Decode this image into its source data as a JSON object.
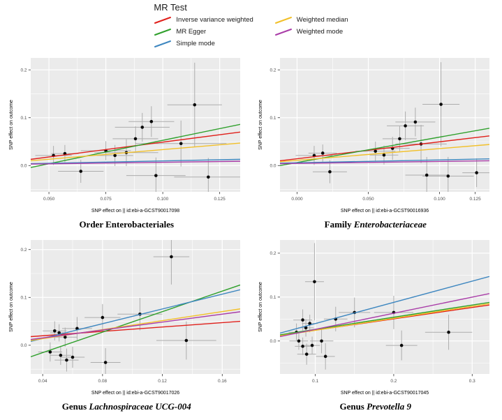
{
  "legend": {
    "title": "MR Test",
    "items": [
      {
        "label": "Inverse variance weighted",
        "color": "#E0201B"
      },
      {
        "label": "MR Egger",
        "color": "#2FA02C"
      },
      {
        "label": "Simple mode",
        "color": "#3E87C0"
      },
      {
        "label": "Weighted median",
        "color": "#F2C029"
      },
      {
        "label": "Weighted mode",
        "color": "#A93DA8"
      }
    ]
  },
  "style": {
    "panel_bg": "#EBEBEB",
    "grid_color": "#FFFFFF",
    "errorbar_color": "#ADADAD",
    "point_color": "#0A0A0A",
    "tick_label_color": "#4D4D4D",
    "axis_title_color": "#000000"
  },
  "chart_data": [
    {
      "type": "scatter",
      "title_prefix": "Order Enterobacteriales",
      "title_italic": "",
      "xlabel": "SNP effect on  || id:ebi-a-GCST90017098",
      "ylabel": "SNP effect on outcome",
      "xlim": [
        0.042,
        0.134
      ],
      "ylim": [
        -0.055,
        0.225
      ],
      "x_ticks": [
        {
          "v": 0.05,
          "label": "0.050"
        },
        {
          "v": 0.075,
          "label": "0.075"
        },
        {
          "v": 0.1,
          "label": "0.100"
        },
        {
          "v": 0.125,
          "label": "0.125"
        }
      ],
      "y_ticks": [
        {
          "v": 0.0,
          "label": "0.0"
        },
        {
          "v": 0.1,
          "label": "0.1"
        },
        {
          "v": 0.2,
          "label": "0.2"
        }
      ],
      "points": [
        {
          "x": 0.052,
          "y": 0.021,
          "ex": 0.008,
          "ey": 0.02
        },
        {
          "x": 0.057,
          "y": 0.025,
          "ex": 0.006,
          "ey": 0.018
        },
        {
          "x": 0.064,
          "y": -0.012,
          "ex": 0.01,
          "ey": 0.024
        },
        {
          "x": 0.075,
          "y": 0.031,
          "ex": 0.011,
          "ey": 0.02
        },
        {
          "x": 0.079,
          "y": 0.021,
          "ex": 0.008,
          "ey": 0.022
        },
        {
          "x": 0.084,
          "y": 0.027,
          "ex": 0.014,
          "ey": 0.028
        },
        {
          "x": 0.088,
          "y": 0.056,
          "ex": 0.01,
          "ey": 0.026
        },
        {
          "x": 0.091,
          "y": 0.08,
          "ex": 0.012,
          "ey": 0.03
        },
        {
          "x": 0.095,
          "y": 0.092,
          "ex": 0.01,
          "ey": 0.032
        },
        {
          "x": 0.097,
          "y": -0.021,
          "ex": 0.013,
          "ey": 0.038
        },
        {
          "x": 0.108,
          "y": 0.046,
          "ex": 0.02,
          "ey": 0.048
        },
        {
          "x": 0.114,
          "y": 0.127,
          "ex": 0.012,
          "ey": 0.088
        },
        {
          "x": 0.12,
          "y": -0.024,
          "ex": 0.015,
          "ey": 0.04
        }
      ],
      "lines": [
        {
          "series": "Inverse variance weighted",
          "color_index": 0,
          "y1": 0.013,
          "y2": 0.07
        },
        {
          "series": "MR Egger",
          "color_index": 1,
          "y1": -0.004,
          "y2": 0.086
        },
        {
          "series": "Simple mode",
          "color_index": 2,
          "y1": 0.004,
          "y2": 0.013
        },
        {
          "series": "Weighted median",
          "color_index": 3,
          "y1": 0.01,
          "y2": 0.047
        },
        {
          "series": "Weighted mode",
          "color_index": 4,
          "y1": 0.003,
          "y2": 0.009
        }
      ]
    },
    {
      "type": "scatter",
      "title_prefix": "Family ",
      "title_italic": "Enterobacteriaceae",
      "xlabel": "SNP effect on  || id:ebi-a-GCST90016936",
      "ylabel": "SNP effect on outcome",
      "xlim": [
        -0.012,
        0.135
      ],
      "ylim": [
        -0.055,
        0.225
      ],
      "x_ticks": [
        {
          "v": 0.0,
          "label": "0.000"
        },
        {
          "v": 0.05,
          "label": "0.050"
        },
        {
          "v": 0.1,
          "label": "0.100"
        },
        {
          "v": 0.125,
          "label": "0.125"
        }
      ],
      "y_ticks": [
        {
          "v": 0.0,
          "label": "0.0"
        },
        {
          "v": 0.1,
          "label": "0.1"
        },
        {
          "v": 0.2,
          "label": "0.2"
        }
      ],
      "points": [
        {
          "x": 0.012,
          "y": 0.021,
          "ex": 0.013,
          "ey": 0.02
        },
        {
          "x": 0.018,
          "y": 0.026,
          "ex": 0.01,
          "ey": 0.018
        },
        {
          "x": 0.023,
          "y": -0.013,
          "ex": 0.012,
          "ey": 0.024
        },
        {
          "x": 0.055,
          "y": 0.03,
          "ex": 0.014,
          "ey": 0.02
        },
        {
          "x": 0.061,
          "y": 0.022,
          "ex": 0.01,
          "ey": 0.02
        },
        {
          "x": 0.067,
          "y": 0.036,
          "ex": 0.012,
          "ey": 0.024
        },
        {
          "x": 0.072,
          "y": 0.056,
          "ex": 0.012,
          "ey": 0.026
        },
        {
          "x": 0.076,
          "y": 0.083,
          "ex": 0.013,
          "ey": 0.03
        },
        {
          "x": 0.083,
          "y": 0.091,
          "ex": 0.014,
          "ey": 0.03
        },
        {
          "x": 0.087,
          "y": 0.045,
          "ex": 0.018,
          "ey": 0.04
        },
        {
          "x": 0.091,
          "y": -0.02,
          "ex": 0.015,
          "ey": 0.038
        },
        {
          "x": 0.101,
          "y": 0.128,
          "ex": 0.013,
          "ey": 0.088
        },
        {
          "x": 0.106,
          "y": -0.022,
          "ex": 0.018,
          "ey": 0.04
        },
        {
          "x": 0.126,
          "y": -0.015,
          "ex": 0.01,
          "ey": 0.03
        }
      ],
      "lines": [
        {
          "series": "Inverse variance weighted",
          "color_index": 0,
          "y1": 0.01,
          "y2": 0.062
        },
        {
          "series": "MR Egger",
          "color_index": 1,
          "y1": 0.0,
          "y2": 0.078
        },
        {
          "series": "Simple mode",
          "color_index": 2,
          "y1": 0.005,
          "y2": 0.014
        },
        {
          "series": "Weighted median",
          "color_index": 3,
          "y1": 0.008,
          "y2": 0.044
        },
        {
          "series": "Weighted mode",
          "color_index": 4,
          "y1": 0.004,
          "y2": 0.01
        }
      ]
    },
    {
      "type": "scatter",
      "title_prefix": "Genus ",
      "title_italic": "Lachnospiraceae UCG-004",
      "xlabel": "SNP effect on  || id:ebi-a-GCST90017026",
      "ylabel": "SNP effect on outcome",
      "xlim": [
        0.032,
        0.172
      ],
      "ylim": [
        -0.06,
        0.22
      ],
      "x_ticks": [
        {
          "v": 0.04,
          "label": "0.04"
        },
        {
          "v": 0.08,
          "label": "0.08"
        },
        {
          "v": 0.12,
          "label": "0.12"
        },
        {
          "v": 0.16,
          "label": "0.16"
        }
      ],
      "y_ticks": [
        {
          "v": 0.0,
          "label": "0.0"
        },
        {
          "v": 0.1,
          "label": "0.1"
        },
        {
          "v": 0.2,
          "label": "0.2"
        }
      ],
      "points": [
        {
          "x": 0.045,
          "y": -0.014,
          "ex": 0.008,
          "ey": 0.02
        },
        {
          "x": 0.048,
          "y": 0.03,
          "ex": 0.008,
          "ey": 0.02
        },
        {
          "x": 0.051,
          "y": 0.026,
          "ex": 0.006,
          "ey": 0.018
        },
        {
          "x": 0.052,
          "y": -0.021,
          "ex": 0.007,
          "ey": 0.02
        },
        {
          "x": 0.055,
          "y": 0.017,
          "ex": 0.008,
          "ey": 0.02
        },
        {
          "x": 0.056,
          "y": -0.031,
          "ex": 0.008,
          "ey": 0.024
        },
        {
          "x": 0.06,
          "y": -0.025,
          "ex": 0.008,
          "ey": 0.022
        },
        {
          "x": 0.063,
          "y": 0.035,
          "ex": 0.01,
          "ey": 0.024
        },
        {
          "x": 0.08,
          "y": 0.058,
          "ex": 0.012,
          "ey": 0.028
        },
        {
          "x": 0.082,
          "y": -0.036,
          "ex": 0.01,
          "ey": 0.03
        },
        {
          "x": 0.105,
          "y": 0.065,
          "ex": 0.015,
          "ey": 0.034
        },
        {
          "x": 0.126,
          "y": 0.185,
          "ex": 0.012,
          "ey": 0.058
        },
        {
          "x": 0.136,
          "y": 0.01,
          "ex": 0.02,
          "ey": 0.04
        }
      ],
      "lines": [
        {
          "series": "Inverse variance weighted",
          "color_index": 0,
          "y1": 0.018,
          "y2": 0.05
        },
        {
          "series": "MR Egger",
          "color_index": 1,
          "y1": -0.024,
          "y2": 0.126
        },
        {
          "series": "Simple mode",
          "color_index": 2,
          "y1": 0.008,
          "y2": 0.116
        },
        {
          "series": "Weighted median",
          "color_index": 3,
          "y1": 0.01,
          "y2": 0.076
        },
        {
          "series": "Weighted mode",
          "color_index": 4,
          "y1": 0.012,
          "y2": 0.07
        }
      ]
    },
    {
      "type": "scatter",
      "title_prefix": "Genus ",
      "title_italic": "Prevotella 9",
      "xlabel": "SNP effect on  || id:ebi-a-GCST90017045",
      "ylabel": "SNP effect on outcome",
      "xlim": [
        0.055,
        0.322
      ],
      "ylim": [
        -0.075,
        0.23
      ],
      "x_ticks": [
        {
          "v": 0.1,
          "label": "0.1"
        },
        {
          "v": 0.2,
          "label": "0.2"
        },
        {
          "v": 0.3,
          "label": "0.3"
        }
      ],
      "y_ticks": [
        {
          "v": 0.0,
          "label": "0.0"
        },
        {
          "v": 0.1,
          "label": "0.1"
        },
        {
          "v": 0.2,
          "label": "0.2"
        }
      ],
      "points": [
        {
          "x": 0.076,
          "y": 0.02,
          "ex": 0.01,
          "ey": 0.02
        },
        {
          "x": 0.084,
          "y": 0.048,
          "ex": 0.012,
          "ey": 0.024
        },
        {
          "x": 0.088,
          "y": 0.03,
          "ex": 0.01,
          "ey": 0.02
        },
        {
          "x": 0.093,
          "y": 0.04,
          "ex": 0.01,
          "ey": 0.02
        },
        {
          "x": 0.079,
          "y": 0.0,
          "ex": 0.012,
          "ey": 0.02
        },
        {
          "x": 0.084,
          "y": -0.012,
          "ex": 0.01,
          "ey": 0.02
        },
        {
          "x": 0.089,
          "y": -0.03,
          "ex": 0.012,
          "ey": 0.024
        },
        {
          "x": 0.096,
          "y": -0.01,
          "ex": 0.01,
          "ey": 0.02
        },
        {
          "x": 0.099,
          "y": 0.135,
          "ex": 0.012,
          "ey": 0.088
        },
        {
          "x": 0.108,
          "y": 0.0,
          "ex": 0.015,
          "ey": 0.028
        },
        {
          "x": 0.113,
          "y": -0.035,
          "ex": 0.012,
          "ey": 0.03
        },
        {
          "x": 0.126,
          "y": 0.05,
          "ex": 0.015,
          "ey": 0.028
        },
        {
          "x": 0.15,
          "y": 0.065,
          "ex": 0.02,
          "ey": 0.034
        },
        {
          "x": 0.2,
          "y": 0.065,
          "ex": 0.025,
          "ey": 0.038
        },
        {
          "x": 0.21,
          "y": -0.01,
          "ex": 0.02,
          "ey": 0.034
        },
        {
          "x": 0.27,
          "y": 0.02,
          "ex": 0.03,
          "ey": 0.04
        }
      ],
      "lines": [
        {
          "series": "Inverse variance weighted",
          "color_index": 0,
          "y1": 0.013,
          "y2": 0.082
        },
        {
          "series": "MR Egger",
          "color_index": 1,
          "y1": 0.014,
          "y2": 0.088
        },
        {
          "series": "Simple mode",
          "color_index": 2,
          "y1": 0.018,
          "y2": 0.147
        },
        {
          "series": "Weighted median",
          "color_index": 3,
          "y1": 0.012,
          "y2": 0.085
        },
        {
          "series": "Weighted mode",
          "color_index": 4,
          "y1": 0.01,
          "y2": 0.108
        }
      ]
    }
  ]
}
